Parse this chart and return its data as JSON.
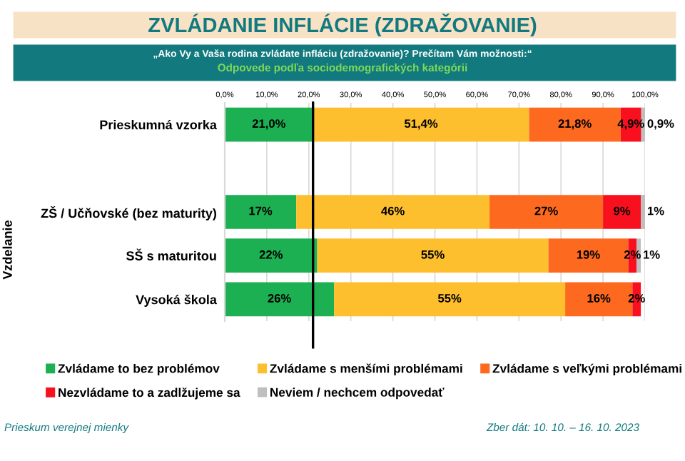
{
  "chart_data": {
    "type": "bar",
    "orientation": "horizontal",
    "stacked": true,
    "title": "ZVLÁDANIE INFLÁCIE (ZDRAŽOVANIE)",
    "subtitle": "„Ako Vy a Vaša rodina zvládate infláciu (zdražovanie)? Prečítam Vám možnosti:“",
    "annotations": [
      "Odpovede podľa sociodemografických kategórii",
      "Prieskum verejnej mienky",
      "Zber dát: 10. 10. – 16. 10. 2023"
    ],
    "ylabel": "Vzdelanie",
    "categories": [
      "Prieskumná vzorka",
      null,
      "ZŠ / Učňovské (bez maturity)",
      "SŠ s maturitou",
      "Vysoká škola"
    ],
    "series": [
      {
        "name": "Zvládame to bez problémov",
        "color": "#1db052",
        "values": [
          21.0,
          null,
          17,
          22,
          26
        ],
        "value_labels": [
          "21,0%",
          null,
          "17%",
          "22%",
          "26%"
        ]
      },
      {
        "name": "Zvládame s menšími problémami",
        "color": "#fdbf2d",
        "values": [
          51.4,
          null,
          46,
          55,
          55
        ],
        "value_labels": [
          "51,4%",
          null,
          "46%",
          "55%",
          "55%"
        ]
      },
      {
        "name": "Zvládame s veľkými problémami",
        "color": "#fd6a1f",
        "values": [
          21.8,
          null,
          27,
          19,
          16
        ],
        "value_labels": [
          "21,8%",
          null,
          "27%",
          "19%",
          "16%"
        ]
      },
      {
        "name": "Nezvládame to a zadlžujeme sa",
        "color": "#f9101e",
        "values": [
          4.9,
          null,
          9,
          2,
          2
        ],
        "value_labels": [
          "4,9%",
          null,
          "9%",
          "2%",
          "2%"
        ]
      },
      {
        "name": "Neviem / nechcem odpovedať",
        "color": "#bfbfbf",
        "values": [
          0.9,
          null,
          1,
          1,
          null
        ],
        "value_labels": [
          "0,9%",
          null,
          "1%",
          "1%",
          null
        ]
      }
    ],
    "xlim": [
      0,
      100
    ],
    "xticks": [
      {
        "value": 0,
        "label": "0,0%"
      },
      {
        "value": 10,
        "label": "10,0%"
      },
      {
        "value": 20,
        "label": "20,0%"
      },
      {
        "value": 30,
        "label": "30,0%"
      },
      {
        "value": 40,
        "label": "40,0%"
      },
      {
        "value": 50,
        "label": "50,0%"
      },
      {
        "value": 60,
        "label": "60,0%"
      },
      {
        "value": 70,
        "label": "70,0%"
      },
      {
        "value": 80,
        "label": "80,0%"
      },
      {
        "value": 90,
        "label": "90,0%"
      },
      {
        "value": 100,
        "label": "100,0%"
      }
    ],
    "ref_lines": [
      {
        "axis": "x",
        "value": 21,
        "color": "#000000"
      }
    ],
    "grid": "x",
    "legend": "bottom"
  }
}
